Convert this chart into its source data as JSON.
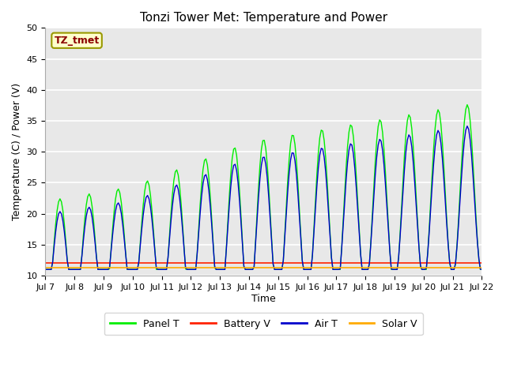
{
  "title": "Tonzi Tower Met: Temperature and Power",
  "xlabel": "Time",
  "ylabel": "Temperature (C) / Power (V)",
  "ylim": [
    10,
    50
  ],
  "annotation": "TZ_tmet",
  "bg_color": "#e8e8e8",
  "legend": [
    "Panel T",
    "Battery V",
    "Air T",
    "Solar V"
  ],
  "legend_colors": [
    "#00ee00",
    "#ff2200",
    "#0000cc",
    "#ffaa00"
  ],
  "x_ticks": [
    "Jul 7",
    "Jul 8",
    "Jul 9",
    "Jul 10",
    "Jul 11",
    "Jul 12",
    "Jul 13",
    "Jul 14",
    "Jul 15",
    "Jul 16",
    "Jul 17",
    "Jul 18",
    "Jul 19",
    "Jul 20",
    "Jul 21",
    "Jul 22"
  ],
  "x_tick_positions": [
    7,
    8,
    9,
    10,
    11,
    12,
    13,
    14,
    15,
    16,
    17,
    18,
    19,
    20,
    21,
    22
  ],
  "battery_V_level": 12.0,
  "solar_V_level": 11.3,
  "x_start": 7,
  "x_end": 22,
  "n_points": 300,
  "title_fontsize": 11,
  "ylabel_fontsize": 9,
  "xlabel_fontsize": 9,
  "tick_fontsize": 8,
  "annotation_fontsize": 9,
  "legend_fontsize": 9
}
